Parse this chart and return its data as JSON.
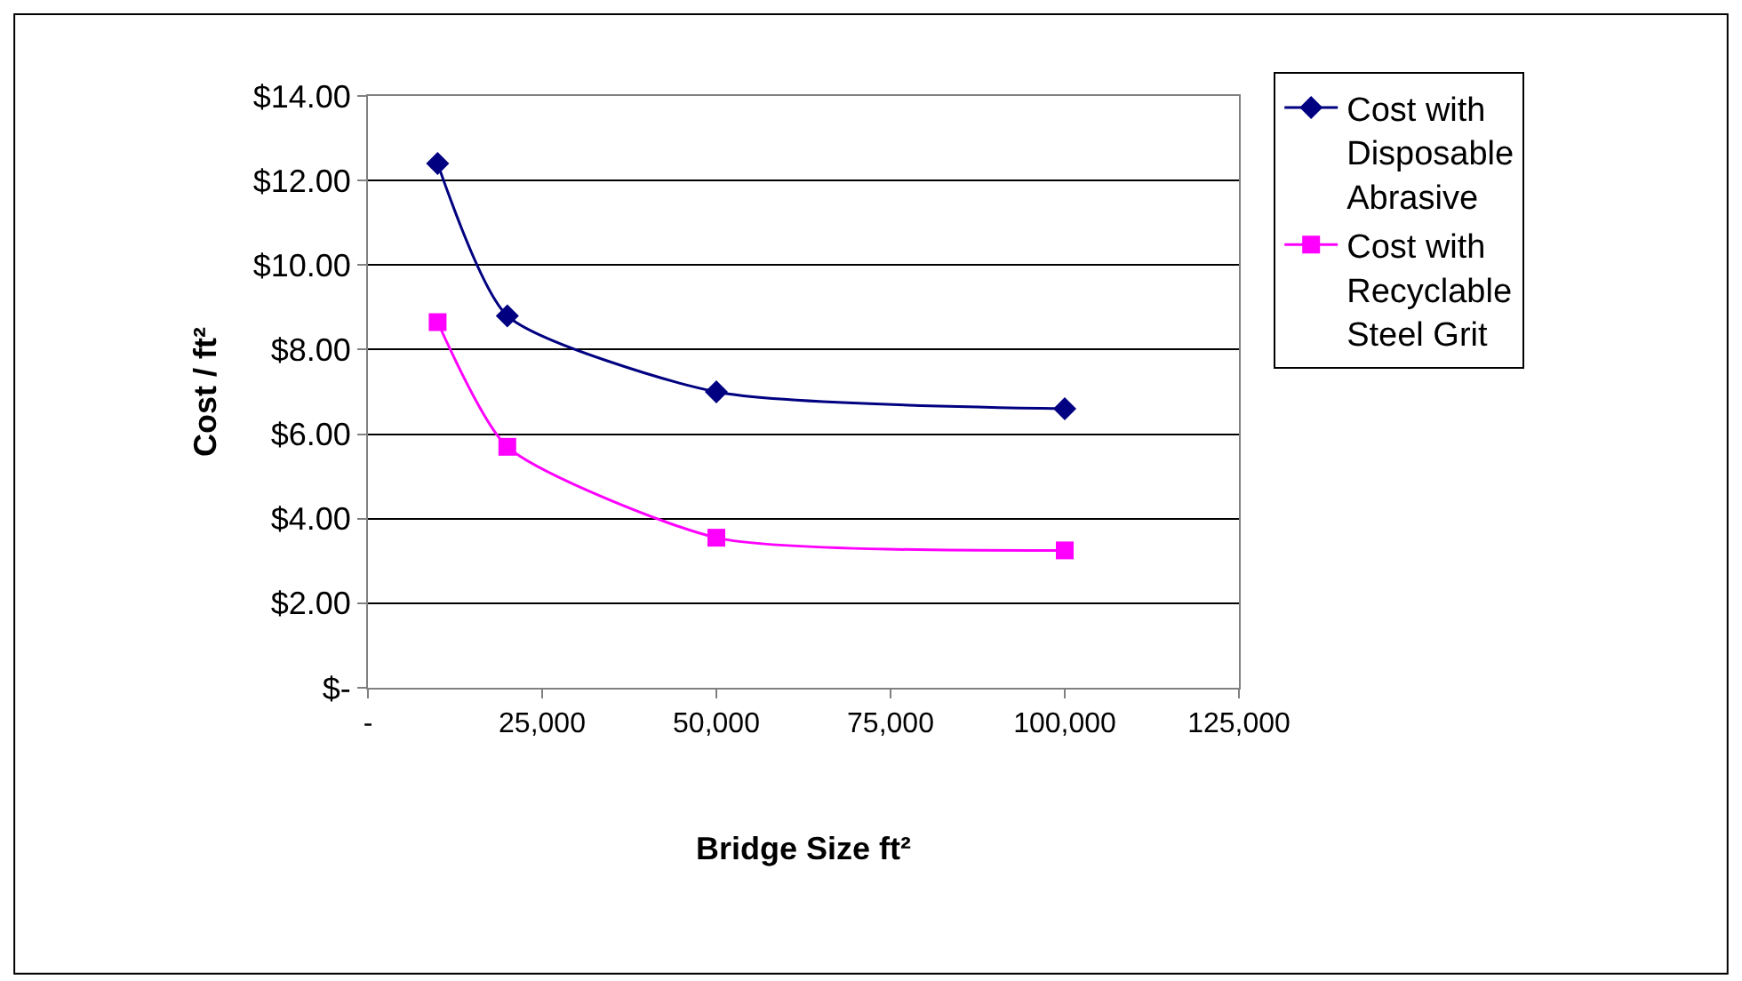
{
  "chart_data": {
    "type": "line",
    "xlabel": "Bridge Size ft²",
    "ylabel": "Cost / ft²",
    "x": [
      10000,
      20000,
      50000,
      100000
    ],
    "series": [
      {
        "name": "Cost with Disposable Abrasive",
        "color": "#000080",
        "marker": "diamond",
        "values": [
          12.4,
          8.8,
          7.0,
          6.6
        ]
      },
      {
        "name": "Cost with Recyclable Steel Grit",
        "color": "#ff00ff",
        "marker": "square",
        "values": [
          8.65,
          5.7,
          3.55,
          3.25
        ]
      }
    ],
    "xlim": [
      0,
      125000
    ],
    "xticks": [
      {
        "value": 0,
        "label": "-"
      },
      {
        "value": 25000,
        "label": "25,000"
      },
      {
        "value": 50000,
        "label": "50,000"
      },
      {
        "value": 75000,
        "label": "75,000"
      },
      {
        "value": 100000,
        "label": "100,000"
      },
      {
        "value": 125000,
        "label": "125,000"
      }
    ],
    "ylim": [
      0,
      14
    ],
    "yticks": [
      {
        "value": 0,
        "label": "$-"
      },
      {
        "value": 2,
        "label": "$2.00"
      },
      {
        "value": 4,
        "label": "$4.00"
      },
      {
        "value": 6,
        "label": "$6.00"
      },
      {
        "value": 8,
        "label": "$8.00"
      },
      {
        "value": 10,
        "label": "$10.00"
      },
      {
        "value": 12,
        "label": "$12.00"
      },
      {
        "value": 14,
        "label": "$14.00"
      }
    ],
    "grid": "y",
    "legend": "right",
    "line_style": "solid"
  }
}
